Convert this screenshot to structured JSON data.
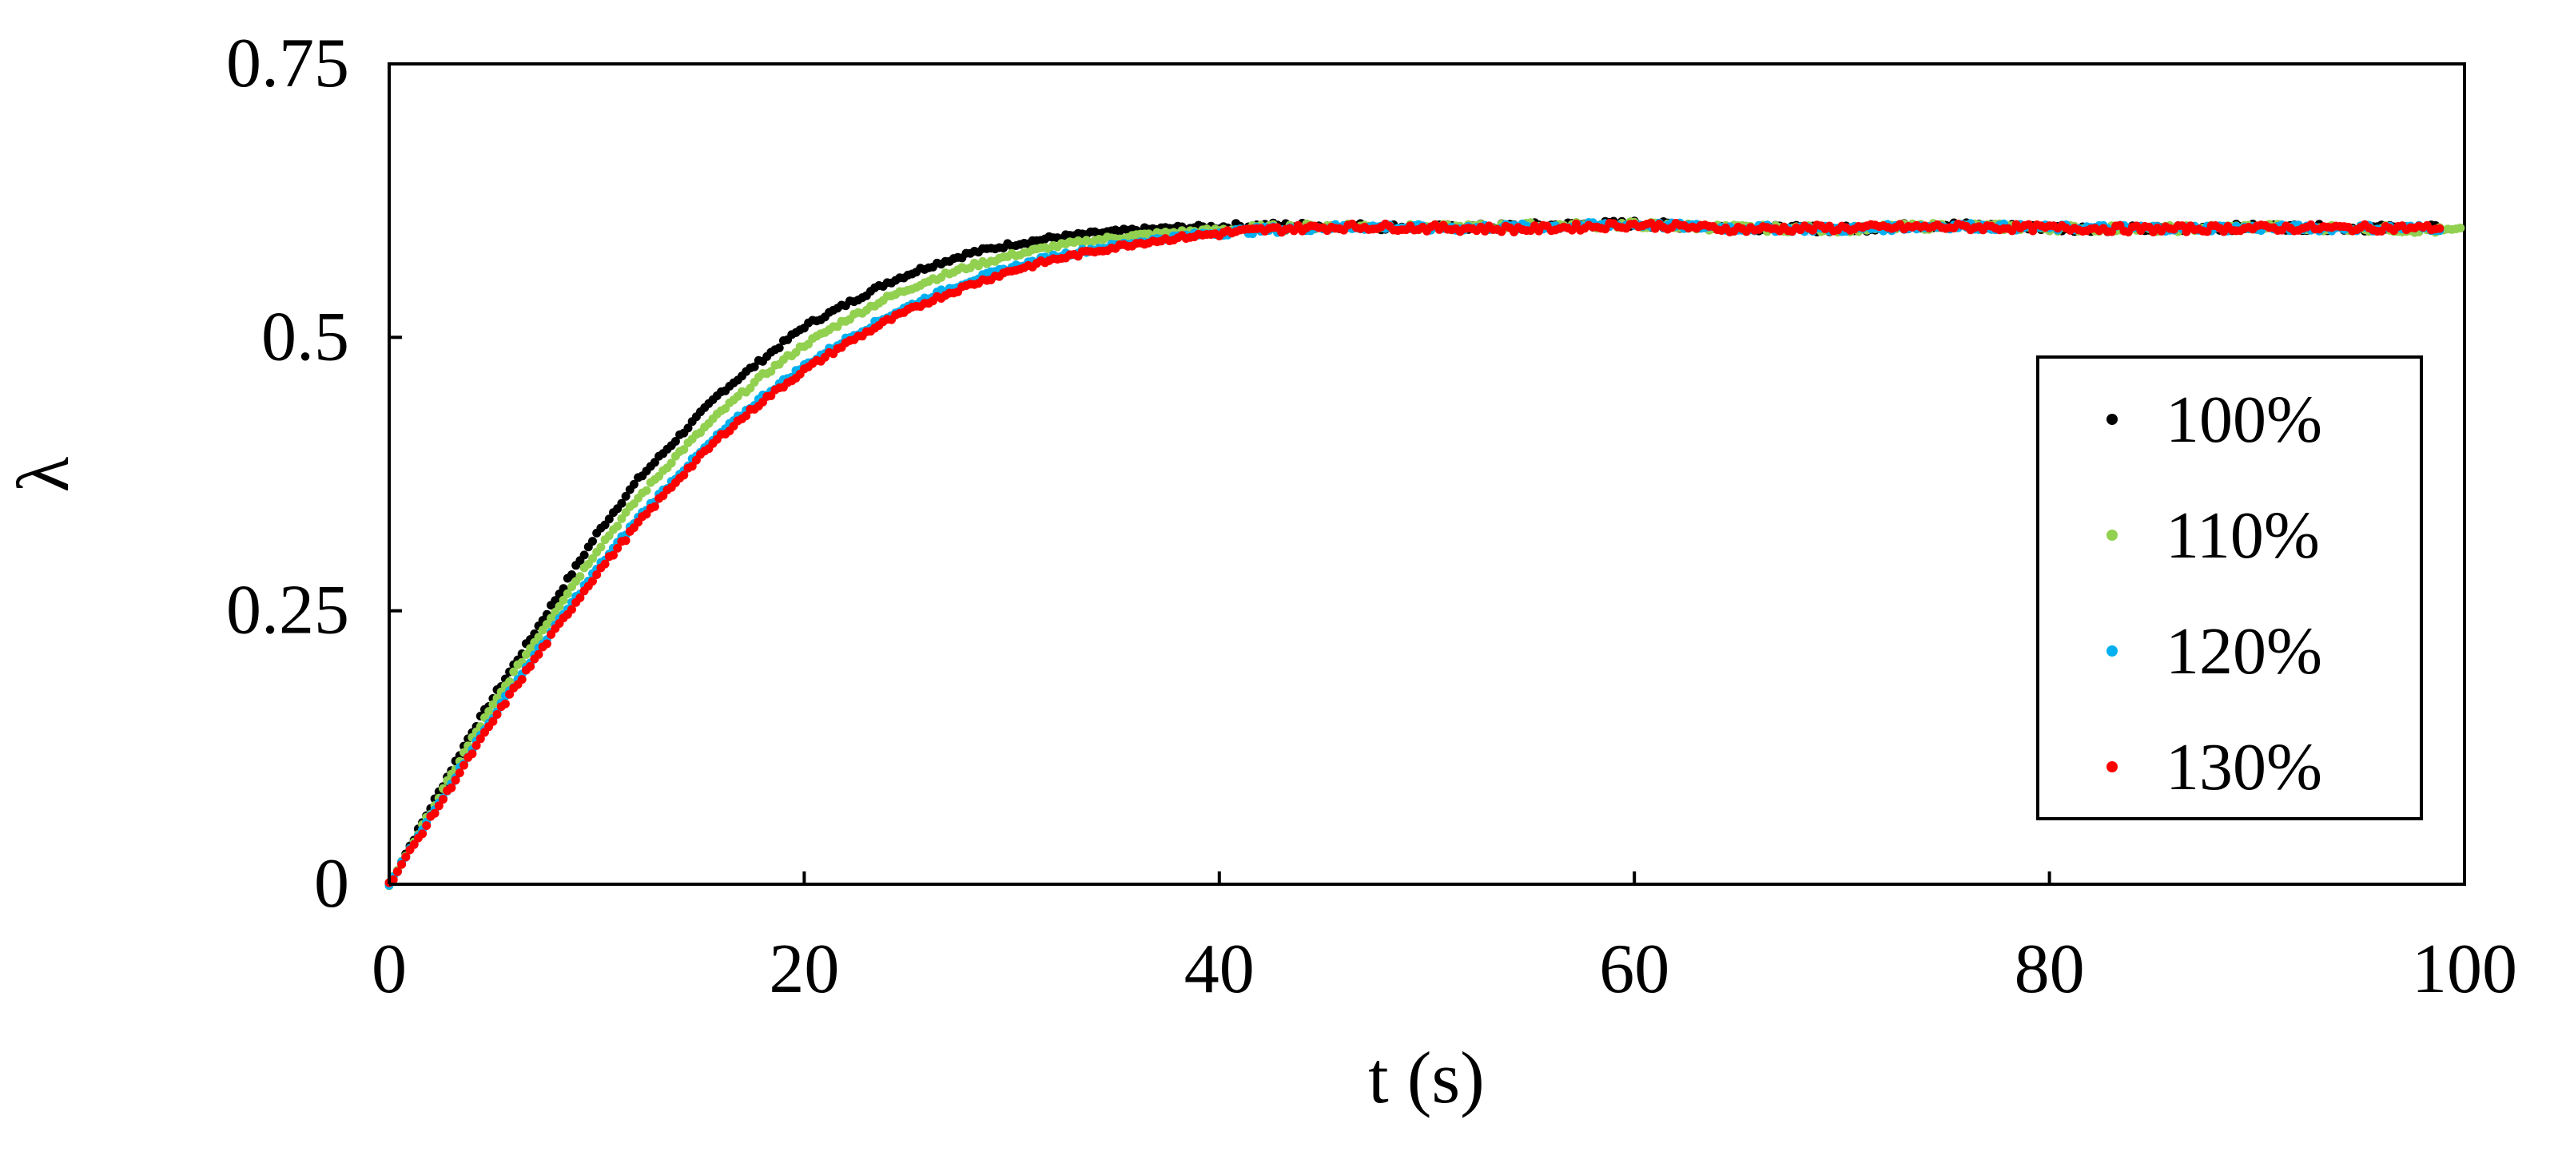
{
  "chart_data": {
    "type": "scatter",
    "title": "",
    "xlabel": "t (s)",
    "ylabel": "λ",
    "xlim": [
      0,
      100
    ],
    "ylim": [
      0,
      0.75
    ],
    "xticks": [
      "0",
      "20",
      "40",
      "60",
      "80",
      "100"
    ],
    "yticks": [
      "0",
      "0.25",
      "0.5",
      "0.75"
    ],
    "grid": false,
    "legend_position": "right",
    "series": [
      {
        "name": "100%",
        "color": "#000000",
        "x": [
          0,
          2,
          4,
          6,
          8,
          10,
          12,
          14,
          16,
          18,
          20,
          22,
          24,
          26,
          28,
          30,
          32,
          34,
          36,
          38,
          40,
          42,
          44,
          46,
          48,
          50,
          55,
          60,
          65,
          70,
          75,
          80,
          85,
          90,
          95,
          99
        ],
        "y": [
          0,
          0.07,
          0.14,
          0.2,
          0.26,
          0.32,
          0.37,
          0.41,
          0.45,
          0.48,
          0.51,
          0.53,
          0.55,
          0.565,
          0.577,
          0.585,
          0.591,
          0.595,
          0.598,
          0.6,
          0.601,
          0.602,
          0.602,
          0.602,
          0.601,
          0.6,
          0.602,
          0.604,
          0.6,
          0.599,
          0.603,
          0.6,
          0.599,
          0.601,
          0.6,
          0.6
        ]
      },
      {
        "name": "110%",
        "color": "#92d050",
        "x": [
          0,
          2,
          4,
          6,
          8,
          10,
          12,
          14,
          16,
          18,
          20,
          22,
          24,
          26,
          28,
          30,
          32,
          34,
          36,
          38,
          40,
          42,
          44,
          46,
          48,
          50,
          55,
          60,
          65,
          70,
          75,
          80,
          85,
          90,
          95,
          100
        ],
        "y": [
          0,
          0.066,
          0.133,
          0.193,
          0.25,
          0.305,
          0.353,
          0.395,
          0.432,
          0.465,
          0.493,
          0.516,
          0.536,
          0.552,
          0.565,
          0.575,
          0.583,
          0.589,
          0.593,
          0.596,
          0.598,
          0.6,
          0.601,
          0.602,
          0.601,
          0.6,
          0.602,
          0.603,
          0.6,
          0.599,
          0.602,
          0.6,
          0.599,
          0.601,
          0.6,
          0.597
        ]
      },
      {
        "name": "120%",
        "color": "#00b0f0",
        "x": [
          0,
          2,
          4,
          6,
          8,
          10,
          12,
          14,
          16,
          18,
          20,
          22,
          24,
          26,
          28,
          30,
          32,
          34,
          36,
          38,
          40,
          42,
          44,
          46,
          48,
          50,
          55,
          60,
          65,
          70,
          75,
          80,
          85,
          90,
          95,
          99
        ],
        "y": [
          0,
          0.062,
          0.124,
          0.182,
          0.236,
          0.288,
          0.335,
          0.376,
          0.413,
          0.446,
          0.474,
          0.498,
          0.519,
          0.537,
          0.552,
          0.564,
          0.574,
          0.581,
          0.587,
          0.592,
          0.596,
          0.598,
          0.6,
          0.601,
          0.601,
          0.6,
          0.601,
          0.603,
          0.6,
          0.599,
          0.602,
          0.6,
          0.6,
          0.6,
          0.6,
          0.6
        ]
      },
      {
        "name": "130%",
        "color": "#ff0000",
        "x": [
          0,
          2,
          4,
          6,
          8,
          10,
          12,
          14,
          16,
          18,
          20,
          22,
          24,
          26,
          28,
          30,
          32,
          34,
          36,
          38,
          40,
          42,
          44,
          46,
          48,
          50,
          55,
          60,
          65,
          70,
          75,
          80,
          85,
          90,
          95,
          99
        ],
        "y": [
          0,
          0.06,
          0.12,
          0.178,
          0.232,
          0.284,
          0.33,
          0.372,
          0.41,
          0.442,
          0.47,
          0.494,
          0.515,
          0.533,
          0.548,
          0.561,
          0.571,
          0.579,
          0.586,
          0.591,
          0.595,
          0.598,
          0.6,
          0.601,
          0.601,
          0.6,
          0.599,
          0.603,
          0.599,
          0.6,
          0.601,
          0.6,
          0.599,
          0.6,
          0.6,
          0.6
        ]
      }
    ]
  }
}
